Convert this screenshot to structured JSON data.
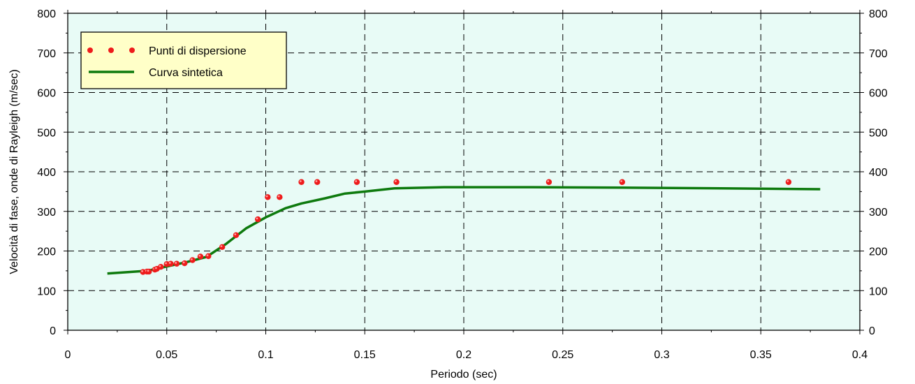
{
  "chart_data": {
    "type": "scatter",
    "xlabel": "Periodo (sec)",
    "ylabel": "Velocità di fase, onde di Rayleigh (m/sec)",
    "xlim": [
      0,
      0.4
    ],
    "ylim": [
      0,
      800
    ],
    "x_ticks": [
      0,
      0.05,
      0.1,
      0.15,
      0.2,
      0.25,
      0.3,
      0.35,
      0.4
    ],
    "x_tick_labels": [
      "0",
      "0.05",
      "0.1",
      "0.15",
      "0.2",
      "0.25",
      "0.3",
      "0.35",
      "0.4"
    ],
    "y_ticks": [
      0,
      100,
      200,
      300,
      400,
      500,
      600,
      700,
      800
    ],
    "y_tick_labels": [
      "0",
      "100",
      "200",
      "300",
      "400",
      "500",
      "600",
      "700",
      "800"
    ],
    "grid": true,
    "right_axis_labels": true,
    "legend_position": "top-left",
    "colors": {
      "plot_background": "#e8fbf6",
      "legend_background": "#ffffc8",
      "points": "#ee1c1c",
      "curve": "#0e7a0e"
    },
    "series": [
      {
        "name": "Punti di dispersione",
        "kind": "scatter",
        "points": [
          [
            0.038,
            147
          ],
          [
            0.04,
            148
          ],
          [
            0.041,
            148
          ],
          [
            0.044,
            153
          ],
          [
            0.045,
            155
          ],
          [
            0.047,
            160
          ],
          [
            0.05,
            167
          ],
          [
            0.052,
            168
          ],
          [
            0.055,
            168
          ],
          [
            0.059,
            169
          ],
          [
            0.063,
            177
          ],
          [
            0.067,
            186
          ],
          [
            0.071,
            187
          ],
          [
            0.078,
            210
          ],
          [
            0.085,
            240
          ],
          [
            0.096,
            280
          ],
          [
            0.101,
            336
          ],
          [
            0.107,
            336
          ],
          [
            0.118,
            374
          ],
          [
            0.126,
            374
          ],
          [
            0.146,
            374
          ],
          [
            0.166,
            374
          ],
          [
            0.243,
            374
          ],
          [
            0.28,
            374
          ],
          [
            0.364,
            374
          ]
        ]
      },
      {
        "name": "Curva sintetica",
        "kind": "line",
        "points": [
          [
            0.02,
            143
          ],
          [
            0.04,
            150
          ],
          [
            0.06,
            172
          ],
          [
            0.07,
            185
          ],
          [
            0.08,
            218
          ],
          [
            0.09,
            257
          ],
          [
            0.1,
            285
          ],
          [
            0.11,
            308
          ],
          [
            0.118,
            320
          ],
          [
            0.13,
            333
          ],
          [
            0.14,
            345
          ],
          [
            0.15,
            350
          ],
          [
            0.165,
            358
          ],
          [
            0.19,
            361
          ],
          [
            0.23,
            361
          ],
          [
            0.28,
            360
          ],
          [
            0.33,
            358
          ],
          [
            0.38,
            356
          ]
        ]
      }
    ]
  }
}
